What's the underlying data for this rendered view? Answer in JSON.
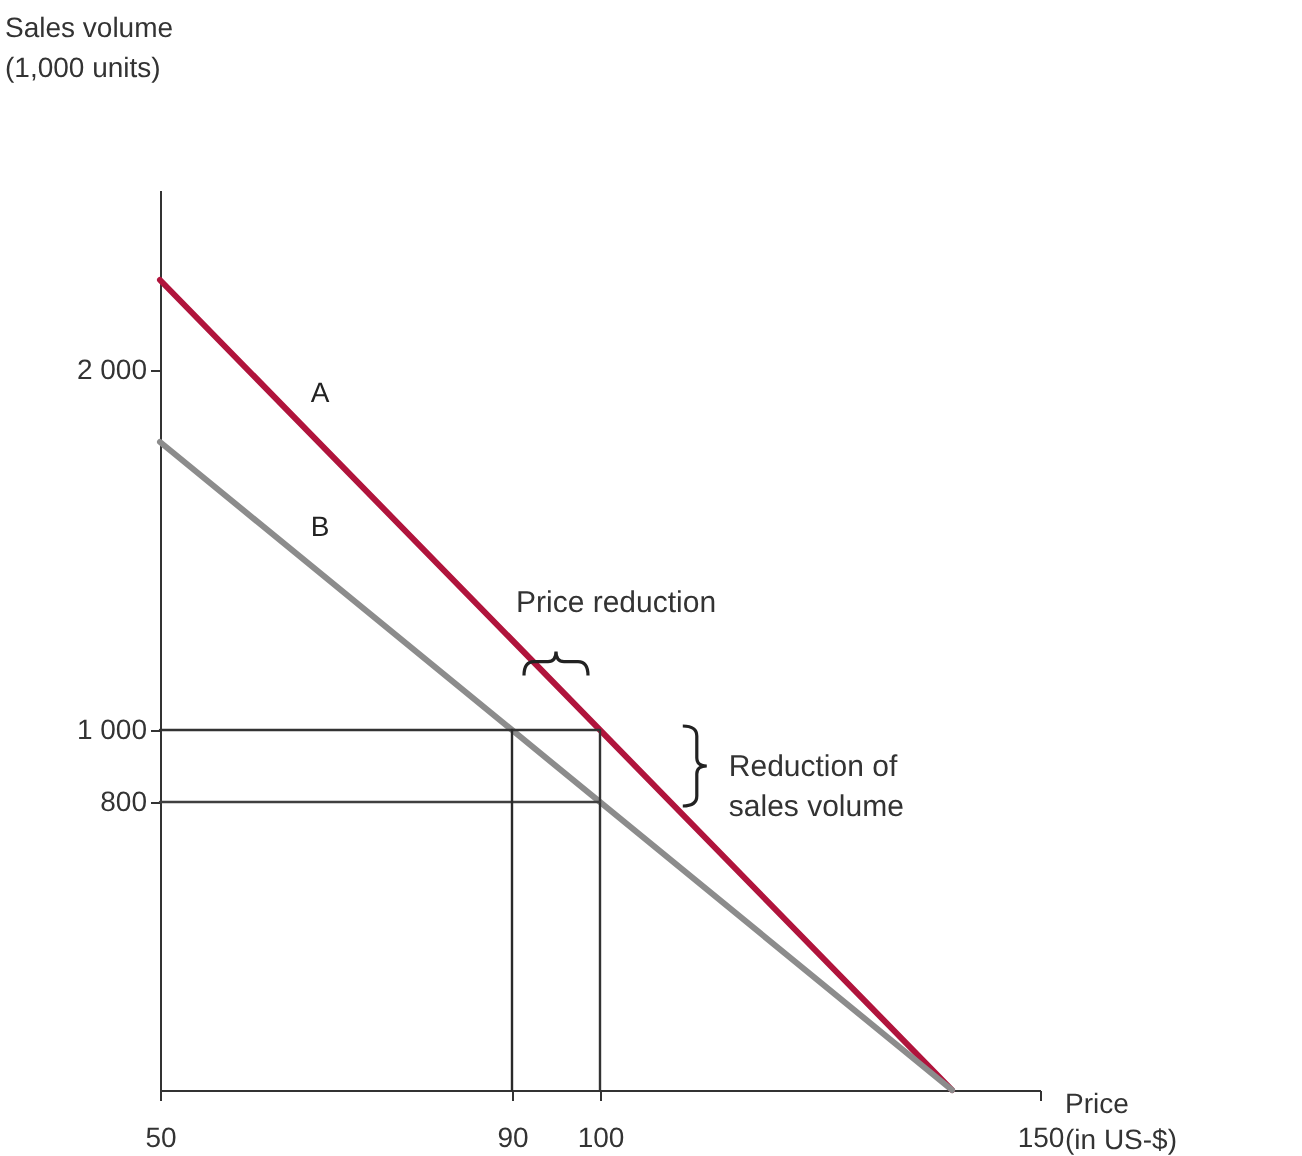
{
  "chart_data": {
    "type": "line",
    "xlabel": "Price (in US-$)",
    "ylabel": "Sales volume (1,000 units)",
    "xlim": [
      50,
      150
    ],
    "ylim": [
      0,
      2500
    ],
    "xticks": [
      50,
      90,
      100,
      150
    ],
    "yticks": [
      {
        "value": 800,
        "label": "800"
      },
      {
        "value": 1000,
        "label": "1 000"
      },
      {
        "value": 2000,
        "label": "2 000"
      }
    ],
    "grid": false,
    "series": [
      {
        "name": "A",
        "color": "#b0143c",
        "x": [
          50,
          140
        ],
        "values": [
          2250,
          0
        ]
      },
      {
        "name": "B",
        "color": "#8c8c8c",
        "x": [
          50,
          140
        ],
        "values": [
          1800,
          0
        ]
      },
      {
        "color": "#333333",
        "x": [
          50,
          100,
          100
        ],
        "values": [
          1000,
          1000,
          0
        ]
      },
      {
        "color": "#404040",
        "x": [
          50,
          100
        ],
        "values": [
          800,
          800
        ]
      },
      {
        "color": "#2a2a2a",
        "x": [
          90,
          90
        ],
        "values": [
          0,
          1000
        ]
      }
    ],
    "annotations": [
      {
        "text": "Price reduction",
        "x": 95,
        "y": 1190
      },
      "Reduction of sales volume"
    ]
  }
}
